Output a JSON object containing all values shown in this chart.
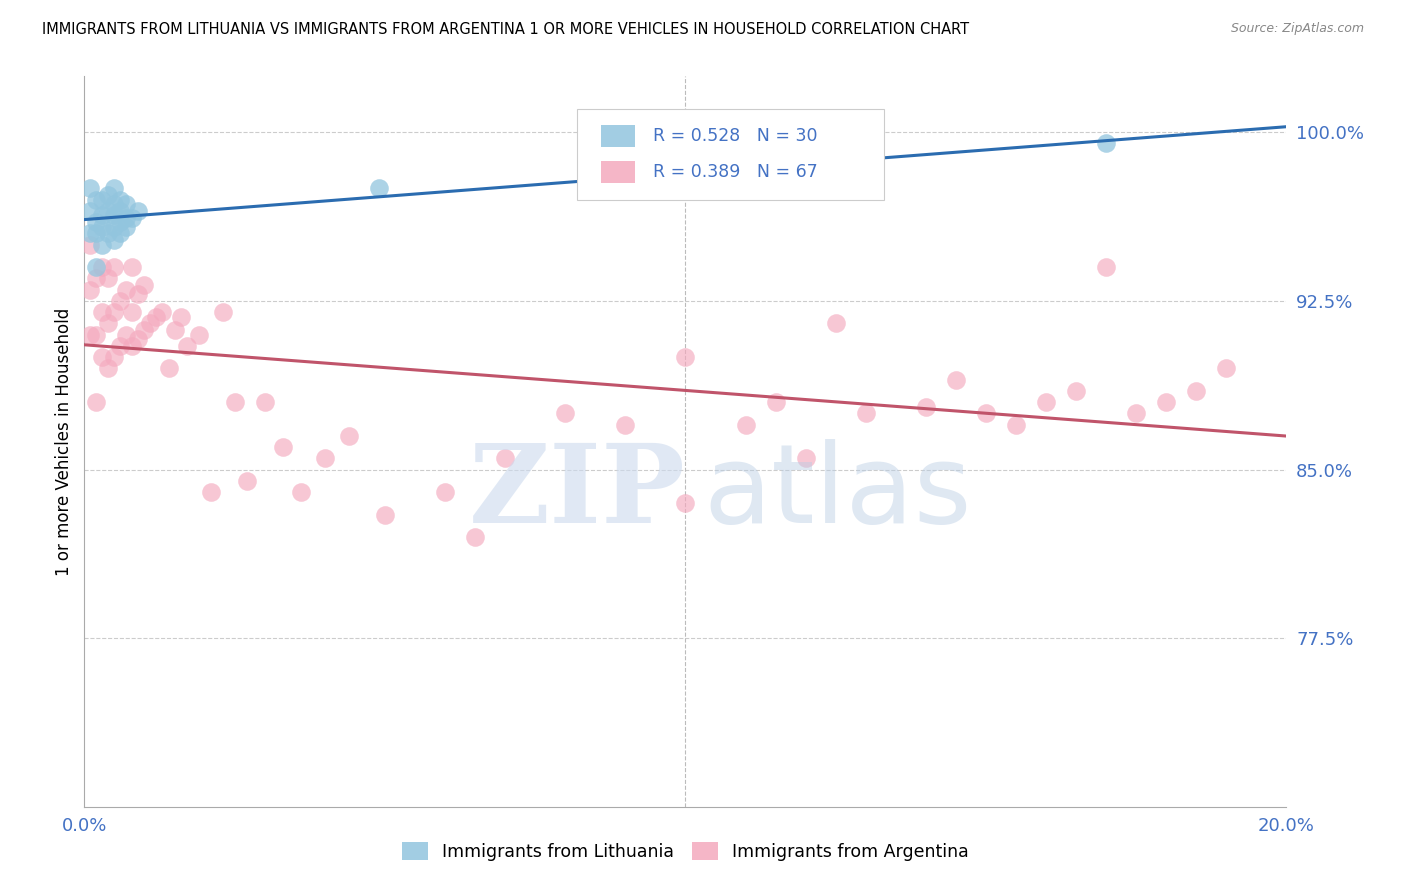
{
  "title": "IMMIGRANTS FROM LITHUANIA VS IMMIGRANTS FROM ARGENTINA 1 OR MORE VEHICLES IN HOUSEHOLD CORRELATION CHART",
  "source": "Source: ZipAtlas.com",
  "ylabel": "1 or more Vehicles in Household",
  "legend_label_lithuania": "Immigrants from Lithuania",
  "legend_label_argentina": "Immigrants from Argentina",
  "blue_color": "#92c5de",
  "pink_color": "#f4a9be",
  "blue_line_color": "#2b6cb0",
  "pink_line_color": "#c0546a",
  "ylim": [
    0.7,
    1.025
  ],
  "xlim": [
    0.0,
    0.2
  ],
  "y_tick_positions": [
    0.775,
    0.85,
    0.925,
    1.0
  ],
  "y_tick_labels": [
    "77.5%",
    "85.0%",
    "92.5%",
    "100.0%"
  ],
  "lithuania_x": [
    0.001,
    0.001,
    0.001,
    0.002,
    0.002,
    0.002,
    0.002,
    0.003,
    0.003,
    0.003,
    0.003,
    0.004,
    0.004,
    0.004,
    0.005,
    0.005,
    0.005,
    0.005,
    0.005,
    0.006,
    0.006,
    0.006,
    0.006,
    0.007,
    0.007,
    0.007,
    0.008,
    0.009,
    0.049,
    0.17
  ],
  "lithuania_y": [
    0.955,
    0.965,
    0.975,
    0.94,
    0.955,
    0.96,
    0.97,
    0.95,
    0.958,
    0.963,
    0.97,
    0.955,
    0.965,
    0.972,
    0.952,
    0.958,
    0.963,
    0.968,
    0.975,
    0.955,
    0.96,
    0.965,
    0.97,
    0.958,
    0.962,
    0.968,
    0.962,
    0.965,
    0.975,
    0.995
  ],
  "argentina_x": [
    0.001,
    0.001,
    0.001,
    0.002,
    0.002,
    0.002,
    0.003,
    0.003,
    0.003,
    0.004,
    0.004,
    0.004,
    0.005,
    0.005,
    0.005,
    0.006,
    0.006,
    0.007,
    0.007,
    0.008,
    0.008,
    0.008,
    0.009,
    0.009,
    0.01,
    0.01,
    0.011,
    0.012,
    0.013,
    0.014,
    0.015,
    0.016,
    0.017,
    0.019,
    0.021,
    0.023,
    0.025,
    0.027,
    0.03,
    0.033,
    0.036,
    0.04,
    0.044,
    0.05,
    0.06,
    0.065,
    0.07,
    0.08,
    0.09,
    0.1,
    0.1,
    0.11,
    0.115,
    0.12,
    0.125,
    0.13,
    0.14,
    0.145,
    0.15,
    0.155,
    0.16,
    0.165,
    0.17,
    0.175,
    0.18,
    0.185,
    0.19
  ],
  "argentina_y": [
    0.91,
    0.93,
    0.95,
    0.88,
    0.91,
    0.935,
    0.9,
    0.92,
    0.94,
    0.895,
    0.915,
    0.935,
    0.9,
    0.92,
    0.94,
    0.905,
    0.925,
    0.91,
    0.93,
    0.905,
    0.92,
    0.94,
    0.908,
    0.928,
    0.912,
    0.932,
    0.915,
    0.918,
    0.92,
    0.895,
    0.912,
    0.918,
    0.905,
    0.91,
    0.84,
    0.92,
    0.88,
    0.845,
    0.88,
    0.86,
    0.84,
    0.855,
    0.865,
    0.83,
    0.84,
    0.82,
    0.855,
    0.875,
    0.87,
    0.835,
    0.9,
    0.87,
    0.88,
    0.855,
    0.915,
    0.875,
    0.878,
    0.89,
    0.875,
    0.87,
    0.88,
    0.885,
    0.94,
    0.875,
    0.88,
    0.885,
    0.895
  ]
}
